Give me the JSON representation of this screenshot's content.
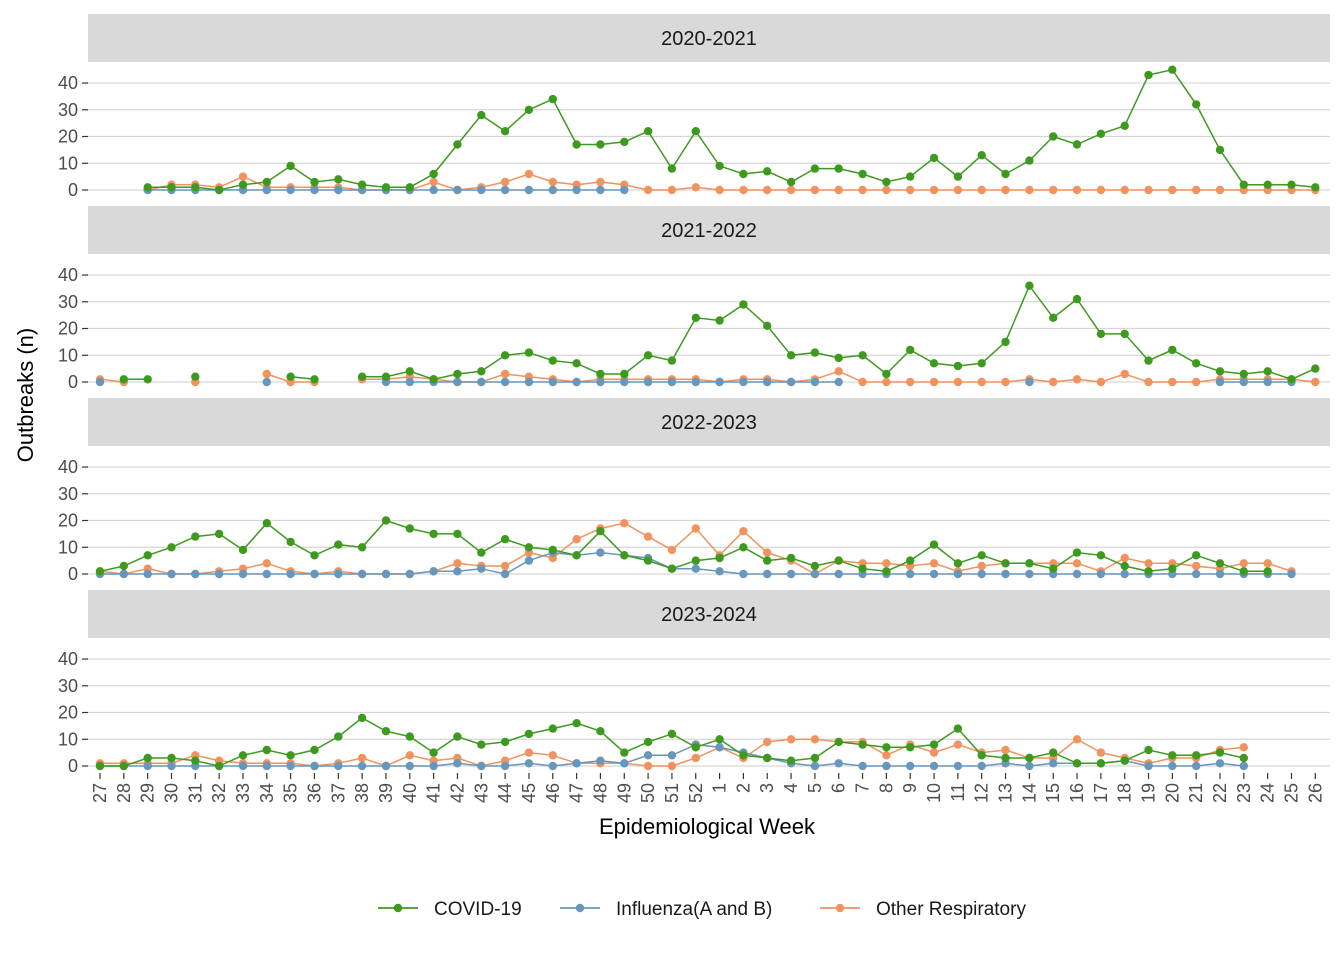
{
  "chart_data": {
    "type": "line",
    "facet_by": "season",
    "xlabel": "Epidemiological Week",
    "ylabel": "Outbreaks (n)",
    "ylim": [
      0,
      46
    ],
    "yticks": [
      0,
      10,
      20,
      30,
      40
    ],
    "grid": "horizontal",
    "legend_position": "bottom",
    "x": [
      "27",
      "28",
      "29",
      "30",
      "31",
      "32",
      "33",
      "34",
      "35",
      "36",
      "37",
      "38",
      "39",
      "40",
      "41",
      "42",
      "43",
      "44",
      "45",
      "46",
      "47",
      "48",
      "49",
      "50",
      "51",
      "52",
      "1",
      "2",
      "3",
      "4",
      "5",
      "6",
      "7",
      "8",
      "9",
      "10",
      "11",
      "12",
      "13",
      "14",
      "15",
      "16",
      "17",
      "18",
      "19",
      "20",
      "21",
      "22",
      "23",
      "24",
      "25",
      "26"
    ],
    "series_meta": [
      {
        "name": "COVID-19",
        "color": "#3d9a1f"
      },
      {
        "name": "Influenza(A and B)",
        "color": "#6897bb"
      },
      {
        "name": "Other Respiratory",
        "color": "#f0935f"
      }
    ],
    "facets": [
      {
        "title": "2020-2021",
        "series": [
          {
            "name": "COVID-19",
            "values": [
              null,
              null,
              1,
              1,
              1,
              0,
              2,
              3,
              9,
              3,
              4,
              2,
              1,
              1,
              6,
              17,
              28,
              22,
              30,
              34,
              17,
              17,
              18,
              22,
              8,
              22,
              9,
              6,
              7,
              3,
              8,
              8,
              6,
              3,
              5,
              12,
              5,
              13,
              6,
              11,
              20,
              17,
              21,
              24,
              43,
              45,
              32,
              15,
              2,
              2,
              2,
              1
            ]
          },
          {
            "name": "Influenza(A and B)",
            "values": [
              null,
              null,
              0,
              0,
              0,
              0,
              0,
              0,
              0,
              0,
              0,
              0,
              0,
              0,
              0,
              0,
              0,
              0,
              0,
              0,
              0,
              0,
              0,
              null,
              null,
              null,
              null,
              null,
              null,
              null,
              null,
              null,
              null,
              null,
              null,
              null,
              null,
              null,
              null,
              null,
              null,
              null,
              null,
              null,
              null,
              null,
              null,
              null,
              null,
              null,
              null,
              null
            ]
          },
          {
            "name": "Other Respiratory",
            "values": [
              null,
              null,
              0,
              2,
              2,
              1,
              5,
              1,
              1,
              1,
              1,
              0,
              0,
              0,
              3,
              0,
              1,
              3,
              6,
              3,
              2,
              3,
              2,
              0,
              0,
              1,
              0,
              0,
              0,
              0,
              0,
              0,
              0,
              0,
              0,
              0,
              0,
              0,
              0,
              0,
              0,
              0,
              0,
              0,
              0,
              0,
              0,
              0,
              0,
              0,
              0,
              0
            ]
          }
        ]
      },
      {
        "title": "2021-2022",
        "series": [
          {
            "name": "COVID-19",
            "values": [
              null,
              1,
              1,
              null,
              2,
              null,
              null,
              null,
              2,
              1,
              null,
              2,
              2,
              4,
              1,
              3,
              4,
              10,
              11,
              8,
              7,
              3,
              3,
              10,
              8,
              24,
              23,
              29,
              21,
              10,
              11,
              9,
              10,
              3,
              12,
              7,
              6,
              7,
              15,
              36,
              24,
              31,
              18,
              18,
              8,
              12,
              7,
              4,
              3,
              4,
              1,
              5
            ]
          },
          {
            "name": "Influenza(A and B)",
            "values": [
              0,
              null,
              null,
              null,
              null,
              null,
              null,
              0,
              null,
              null,
              null,
              null,
              0,
              0,
              0,
              0,
              0,
              0,
              0,
              0,
              0,
              0,
              0,
              0,
              0,
              0,
              0,
              0,
              0,
              0,
              0,
              0,
              null,
              null,
              null,
              null,
              null,
              null,
              null,
              0,
              null,
              null,
              null,
              null,
              null,
              null,
              null,
              0,
              0,
              0,
              0,
              null
            ]
          },
          {
            "name": "Other Respiratory",
            "values": [
              1,
              0,
              null,
              null,
              0,
              null,
              null,
              3,
              0,
              0,
              null,
              1,
              1,
              2,
              1,
              0,
              0,
              3,
              2,
              1,
              0,
              1,
              1,
              1,
              1,
              1,
              0,
              1,
              1,
              0,
              1,
              4,
              0,
              0,
              0,
              0,
              0,
              0,
              0,
              1,
              0,
              1,
              0,
              3,
              0,
              0,
              0,
              1,
              1,
              1,
              1,
              0
            ]
          }
        ]
      },
      {
        "title": "2022-2023",
        "series": [
          {
            "name": "COVID-19",
            "values": [
              1,
              3,
              7,
              10,
              14,
              15,
              9,
              19,
              12,
              7,
              11,
              10,
              20,
              17,
              15,
              15,
              8,
              13,
              10,
              9,
              7,
              16,
              7,
              5,
              2,
              5,
              6,
              10,
              5,
              6,
              3,
              5,
              2,
              1,
              5,
              11,
              4,
              7,
              4,
              4,
              2,
              8,
              7,
              3,
              1,
              2,
              7,
              4,
              1,
              1,
              null,
              null
            ]
          },
          {
            "name": "Influenza(A and B)",
            "values": [
              0,
              0,
              0,
              0,
              0,
              0,
              0,
              0,
              0,
              0,
              0,
              0,
              0,
              0,
              1,
              1,
              2,
              0,
              5,
              8,
              7,
              8,
              7,
              6,
              2,
              2,
              1,
              0,
              0,
              0,
              0,
              0,
              0,
              0,
              0,
              0,
              0,
              0,
              0,
              0,
              0,
              0,
              0,
              0,
              0,
              0,
              0,
              0,
              0,
              0,
              0,
              null
            ]
          },
          {
            "name": "Other Respiratory",
            "values": [
              1,
              0,
              2,
              0,
              0,
              1,
              2,
              4,
              1,
              0,
              1,
              0,
              0,
              0,
              1,
              4,
              3,
              3,
              8,
              6,
              13,
              17,
              19,
              14,
              9,
              17,
              7,
              16,
              8,
              5,
              0,
              5,
              4,
              4,
              3,
              4,
              1,
              3,
              4,
              4,
              4,
              4,
              1,
              6,
              4,
              4,
              3,
              2,
              4,
              4,
              1,
              null
            ]
          }
        ]
      },
      {
        "title": "2023-2024",
        "series": [
          {
            "name": "COVID-19",
            "values": [
              0,
              0,
              3,
              3,
              2,
              0,
              4,
              6,
              4,
              6,
              11,
              18,
              13,
              11,
              5,
              11,
              8,
              9,
              12,
              14,
              16,
              13,
              5,
              9,
              12,
              7,
              10,
              4,
              3,
              2,
              3,
              9,
              8,
              7,
              7,
              8,
              14,
              4,
              3,
              3,
              5,
              1,
              1,
              2,
              6,
              4,
              4,
              5,
              3,
              null,
              null,
              null
            ]
          },
          {
            "name": "Influenza(A and B)",
            "values": [
              0,
              0,
              0,
              0,
              0,
              0,
              0,
              0,
              0,
              0,
              0,
              0,
              0,
              0,
              0,
              1,
              0,
              0,
              1,
              0,
              1,
              2,
              1,
              4,
              4,
              8,
              7,
              5,
              3,
              1,
              0,
              1,
              0,
              0,
              0,
              0,
              0,
              0,
              1,
              0,
              1,
              1,
              1,
              2,
              0,
              0,
              0,
              1,
              0,
              null,
              null,
              null
            ]
          },
          {
            "name": "Other Respiratory",
            "values": [
              1,
              1,
              1,
              1,
              4,
              2,
              1,
              1,
              1,
              0,
              1,
              3,
              0,
              4,
              2,
              3,
              0,
              2,
              5,
              4,
              1,
              1,
              1,
              0,
              0,
              3,
              7,
              3,
              9,
              10,
              10,
              9,
              9,
              4,
              8,
              5,
              8,
              5,
              6,
              3,
              3,
              10,
              5,
              3,
              1,
              3,
              3,
              6,
              7,
              null,
              null,
              null
            ]
          }
        ]
      }
    ]
  }
}
